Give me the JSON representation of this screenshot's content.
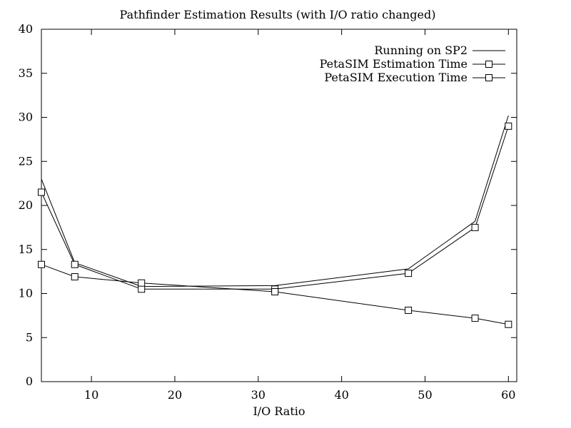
{
  "chart_data": {
    "type": "line",
    "title": "Pathfinder Estimation Results (with I/O ratio changed)",
    "xlabel": "I/O Ratio",
    "ylabel": "",
    "xlim": [
      4,
      61
    ],
    "ylim": [
      0,
      40
    ],
    "xticks": [
      10,
      20,
      30,
      40,
      50,
      60
    ],
    "yticks": [
      0,
      5,
      10,
      15,
      20,
      25,
      30,
      35,
      40
    ],
    "grid": false,
    "legend_position": "top-right",
    "series": [
      {
        "name": "Running on SP2",
        "marker": "none",
        "color": "#000000",
        "x": [
          4,
          8,
          16,
          32,
          48,
          56,
          60
        ],
        "y": [
          23.0,
          13.5,
          10.8,
          10.9,
          12.8,
          18.2,
          30.2
        ]
      },
      {
        "name": "PetaSIM Estimation Time",
        "marker": "square",
        "color": "#000000",
        "x": [
          4,
          8,
          16,
          32,
          48,
          56,
          60
        ],
        "y": [
          21.5,
          13.3,
          10.5,
          10.5,
          12.3,
          17.5,
          29.0
        ]
      },
      {
        "name": "PetaSIM Execution Time",
        "marker": "square",
        "color": "#000000",
        "x": [
          4,
          8,
          16,
          32,
          48,
          56,
          60
        ],
        "y": [
          13.3,
          11.9,
          11.2,
          10.2,
          8.1,
          7.2,
          6.5
        ]
      }
    ]
  }
}
